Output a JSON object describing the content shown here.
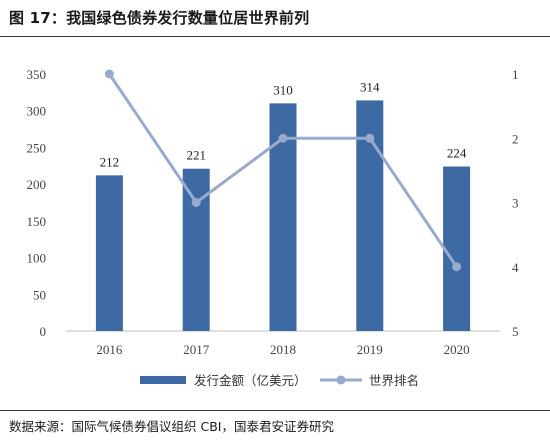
{
  "figure_title": "图 17：我国绿色债券发行数量位居世界前列",
  "source": "数据来源：国际气候债券倡议组织 CBI，国泰君安证券研究",
  "colors": {
    "bar": "#3d6aa3",
    "line": "#98abcf",
    "axis_text": "#444444",
    "baseline": "#bfbfbf"
  },
  "chart_data": {
    "type": "bar",
    "categories": [
      "2016",
      "2017",
      "2018",
      "2019",
      "2020"
    ],
    "series": [
      {
        "name": "发行金额（亿美元）",
        "type": "bar",
        "axis": "left",
        "values": [
          212,
          221,
          310,
          314,
          224
        ],
        "data_labels": [
          "212",
          "221",
          "310",
          "314",
          "224"
        ]
      },
      {
        "name": "世界排名",
        "type": "line",
        "axis": "right",
        "values": [
          1,
          3,
          2,
          2,
          4
        ]
      }
    ],
    "y_left": {
      "ylim": [
        0,
        350
      ],
      "ticks": [
        "0",
        "50",
        "100",
        "150",
        "200",
        "250",
        "300",
        "350"
      ]
    },
    "y_right": {
      "ylim": [
        1,
        5
      ],
      "inverted": true,
      "ticks": [
        "1",
        "2",
        "3",
        "4",
        "5"
      ]
    },
    "grid": false,
    "legend": "bottom"
  }
}
